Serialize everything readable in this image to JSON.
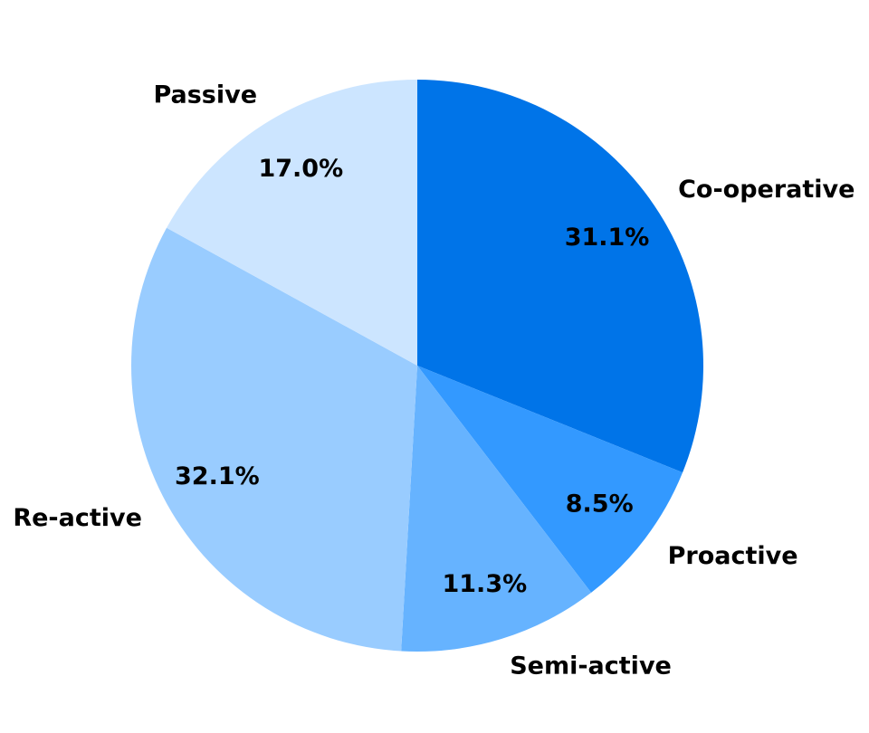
{
  "chart_data": {
    "type": "pie",
    "title": "",
    "start_angle_deg": 90,
    "direction": "clockwise",
    "slices": [
      {
        "label": "Co-operative",
        "value": 31.1,
        "pct_label": "31.1%",
        "color": "#0074e8"
      },
      {
        "label": "Proactive",
        "value": 8.5,
        "pct_label": "8.5%",
        "color": "#3399ff"
      },
      {
        "label": "Semi-active",
        "value": 11.3,
        "pct_label": "11.3%",
        "color": "#66b3ff"
      },
      {
        "label": "Re-active",
        "value": 32.1,
        "pct_label": "32.1%",
        "color": "#99ccff"
      },
      {
        "label": "Passive",
        "value": 17.0,
        "pct_label": "17.0%",
        "color": "#cce5ff"
      }
    ],
    "legend": "none"
  }
}
